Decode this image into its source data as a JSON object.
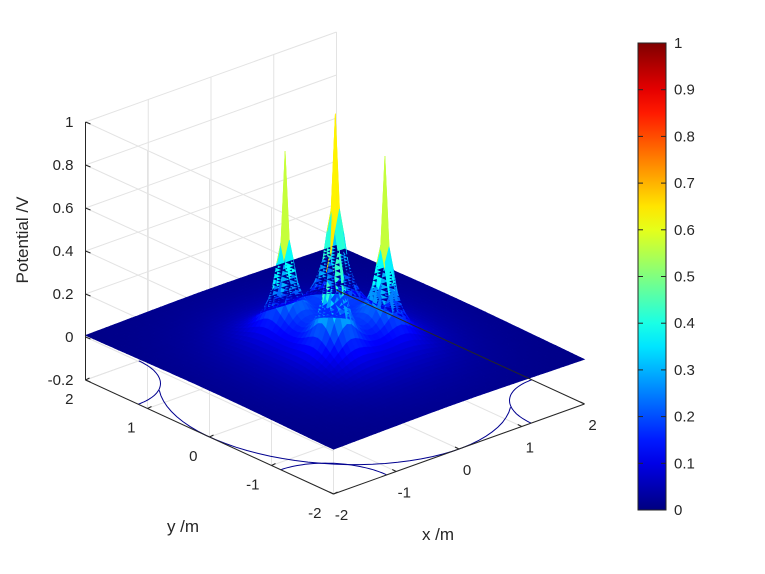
{
  "chart_data": {
    "type": "surface",
    "title": "",
    "xlabel": "x /m",
    "ylabel": "y /m",
    "zlabel": "Potential /V",
    "xlim": [
      -2,
      2
    ],
    "ylim": [
      -2,
      2
    ],
    "zlim": [
      -0.2,
      1
    ],
    "x_ticks": [
      "-2",
      "-1",
      "0",
      "1",
      "2"
    ],
    "y_ticks": [
      "-2",
      "-1",
      "0",
      "1",
      "2"
    ],
    "z_ticks": [
      "-0.2",
      "0",
      "0.2",
      "0.4",
      "0.6",
      "0.8",
      "1"
    ],
    "colormap": "jet",
    "colorbar": {
      "limits": [
        0,
        1
      ],
      "ticks": [
        "0",
        "0.1",
        "0.2",
        "0.3",
        "0.4",
        "0.5",
        "0.6",
        "0.7",
        "0.8",
        "0.9",
        "1"
      ]
    },
    "peaks": [
      {
        "x": -0.4,
        "y": 0.4,
        "z": 0.85
      },
      {
        "x": 0.4,
        "y": -0.4,
        "z": 0.85
      },
      {
        "x": -0.4,
        "y": -0.4,
        "z": 1.0
      },
      {
        "x": 0.4,
        "y": 0.4,
        "z": 1.0
      }
    ],
    "peak_width": 0.18,
    "contour_level": 0.002,
    "grid": true,
    "surface_color": "#00008f"
  }
}
